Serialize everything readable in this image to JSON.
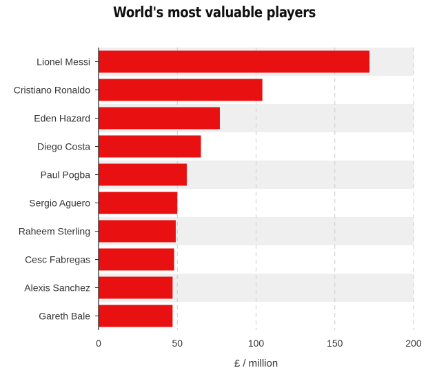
{
  "chart_data": {
    "type": "bar",
    "orientation": "horizontal",
    "title": "World's most valuable players",
    "xlabel": "£ / million",
    "ylabel": "",
    "categories": [
      "Lionel Messi",
      "Cristiano Ronaldo",
      "Eden Hazard",
      "Diego Costa",
      "Paul Pogba",
      "Sergio Aguero",
      "Raheem Sterling",
      "Cesc Fabregas",
      "Alexis Sanchez",
      "Gareth Bale"
    ],
    "values": [
      172,
      104,
      77,
      65,
      56,
      50,
      49,
      48,
      47,
      47
    ],
    "xlim": [
      0,
      200
    ],
    "xticks": [
      0,
      50,
      100,
      150,
      200
    ],
    "grid": true,
    "grid_style": "dashed vertical",
    "alternating_row_bands": true,
    "colors": {
      "bar": "#e81010",
      "band": "#efefef",
      "grid": "#cccccc",
      "axis": "#222222"
    }
  }
}
